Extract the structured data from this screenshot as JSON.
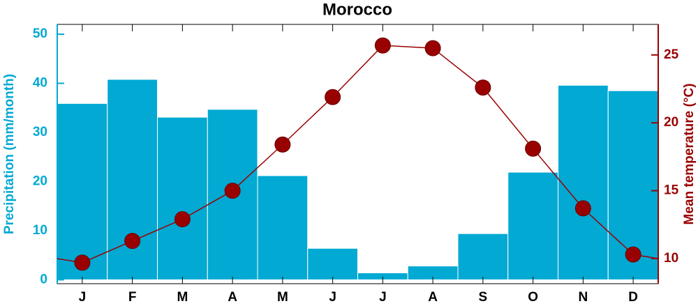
{
  "chart_data": {
    "type": "bar_line",
    "title": "Morocco",
    "categories": [
      "J",
      "F",
      "M",
      "A",
      "M",
      "J",
      "J",
      "A",
      "S",
      "O",
      "N",
      "D"
    ],
    "ylabel": "Precipitation (mm/month)",
    "y2label": "Mean temperature (°C)",
    "ylim": [
      -0.8,
      52
    ],
    "yticks": [
      0,
      10,
      20,
      30,
      40,
      50
    ],
    "y2lim": [
      8.15,
      27.25
    ],
    "y2ticks": [
      10,
      15,
      20,
      25
    ],
    "series": [
      {
        "name": "Precipitation",
        "type": "bar",
        "color": "#02a9d3",
        "values": [
          35.9,
          40.8,
          33.1,
          34.7,
          21.2,
          6.4,
          1.4,
          2.8,
          9.4,
          21.9,
          39.6,
          38.5
        ]
      },
      {
        "name": "Mean temperature",
        "type": "line",
        "axis": "y2",
        "color": "#990000",
        "values": [
          9.7,
          11.3,
          12.9,
          15.0,
          18.4,
          21.9,
          25.7,
          25.5,
          22.6,
          18.1,
          13.7,
          10.3
        ]
      }
    ]
  }
}
